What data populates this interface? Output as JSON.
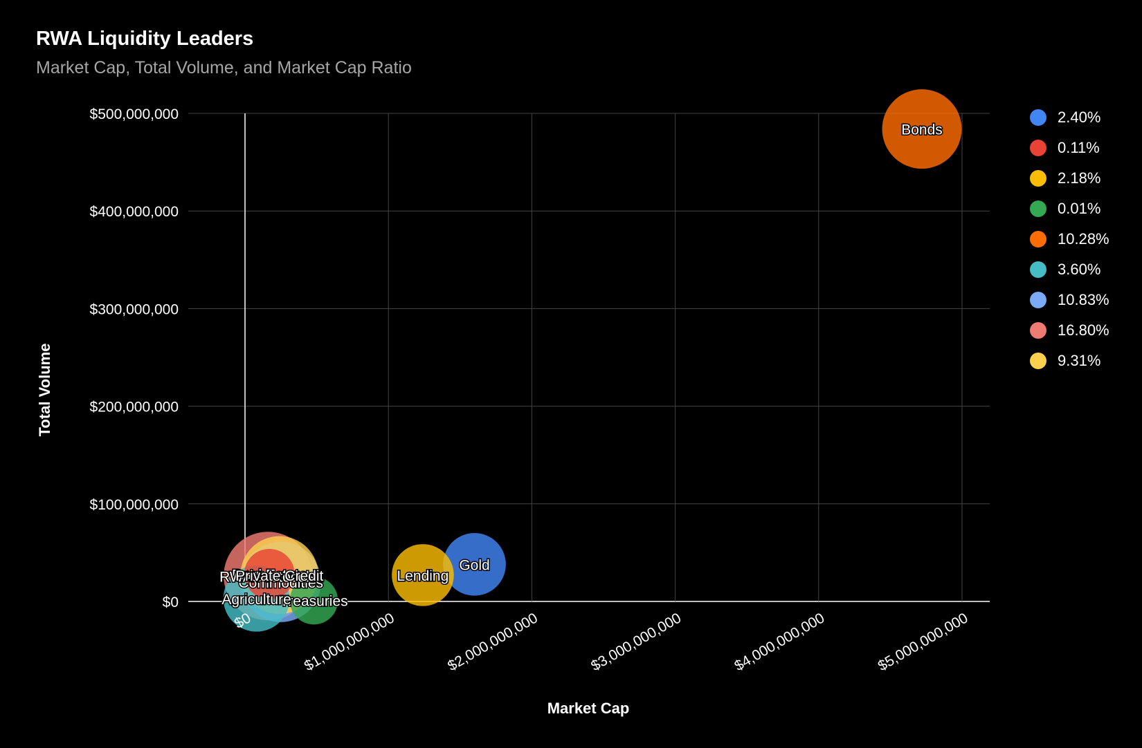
{
  "chart_data": {
    "type": "bubble",
    "title": "RWA Liquidity Leaders",
    "subtitle": "Market Cap, Total Volume, and Market Cap Ratio",
    "xlabel": "Market Cap",
    "ylabel": "Total Volume",
    "xlim": [
      -400000000,
      5200000000
    ],
    "ylim": [
      0,
      500000000
    ],
    "x_ticks": [
      0,
      1000000000,
      2000000000,
      3000000000,
      4000000000,
      5000000000
    ],
    "x_tick_labels": [
      "$0",
      "$1,000,000,000",
      "$2,000,000,000",
      "$3,000,000,000",
      "$4,000,000,000",
      "$5,000,000,000"
    ],
    "y_ticks": [
      0,
      100000000,
      200000000,
      300000000,
      400000000,
      500000000
    ],
    "y_tick_labels": [
      "$0",
      "$100,000,000",
      "$200,000,000",
      "$300,000,000",
      "$400,000,000",
      "$500,000,000"
    ],
    "grid": true,
    "legend_position": "right",
    "points": [
      {
        "label": "Gold",
        "legend": "2.40%",
        "x": 1600000000,
        "y": 38000000,
        "size": 2.4,
        "color": "#4285f4"
      },
      {
        "label": "Real Estate",
        "legend": "0.11%",
        "x": 170000000,
        "y": 28000000,
        "size": 0.11,
        "color": "#ea4335"
      },
      {
        "label": "Lending",
        "legend": "2.18%",
        "x": 1240000000,
        "y": 27000000,
        "size": 2.18,
        "color": "#fbbc04"
      },
      {
        "label": "Treasuries",
        "legend": "0.01%",
        "x": 480000000,
        "y": 1000000,
        "size": 0.01,
        "color": "#34a853"
      },
      {
        "label": "Bonds",
        "legend": "10.28%",
        "x": 4720000000,
        "y": 484000000,
        "size": 10.28,
        "color": "#ff6d01"
      },
      {
        "label": "Agriculture",
        "legend": "3.60%",
        "x": 80000000,
        "y": 3000000,
        "size": 3.6,
        "color": "#46bdc6"
      },
      {
        "label": "Commodities",
        "legend": "10.83%",
        "x": 250000000,
        "y": 20000000,
        "size": 10.83,
        "color": "#7baaf7"
      },
      {
        "label": "RWA Protocols",
        "legend": "16.80%",
        "x": 160000000,
        "y": 26000000,
        "size": 16.8,
        "color": "#f07b72"
      },
      {
        "label": "Private Credit",
        "legend": "9.31%",
        "x": 240000000,
        "y": 27000000,
        "size": 9.31,
        "color": "#fcd04f"
      }
    ],
    "colors": {
      "grid": "#444444",
      "zero_axis": "#ffffff",
      "text": "#ffffff",
      "subtitle": "#a6a6a6"
    }
  }
}
